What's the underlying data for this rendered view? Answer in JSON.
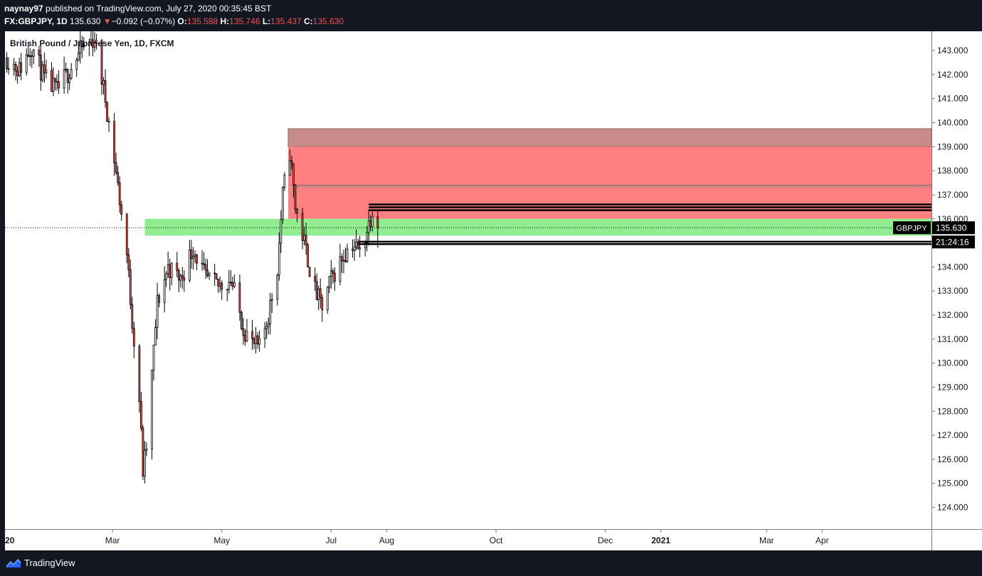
{
  "header": {
    "publisher": "naynay97",
    "published_text": "published on TradingView.com, July 27, 2020 00:35:45 BST",
    "symbol_tf": "FX:GBPJPY, 1D",
    "last": "135.630",
    "change_arrow": "▼",
    "change": "−0.092 (−0.07%)",
    "o_label": "O:",
    "o_value": "135.588",
    "h_label": "H:",
    "h_value": "135.746",
    "l_label": "L:",
    "l_value": "135.437",
    "c_label": "C:",
    "c_value": "135.630"
  },
  "colors": {
    "up": "#ffffff",
    "down": "#ef5350",
    "supply_zone": "#ff8080",
    "supply_zone_top": "#c98a8a",
    "demand_zone": "#90ee90",
    "pane_bg": "#ffffff",
    "scale_bg": "#ffffff",
    "app_bg": "#131722"
  },
  "chart_data": {
    "type": "candlestick",
    "title": "British Pound / Japanese Yen, 1D, FXCM",
    "symbol_label": "GBPJPY",
    "last_price_label": "135.630",
    "countdown_label": "21:24:16",
    "ylim": [
      123.1,
      143.8
    ],
    "y_ticks": [
      "143.000",
      "142.000",
      "141.000",
      "140.000",
      "139.000",
      "138.000",
      "137.000",
      "136.000",
      "135.000",
      "134.000",
      "133.000",
      "132.000",
      "131.000",
      "130.000",
      "129.000",
      "128.000",
      "127.000",
      "126.000",
      "125.000",
      "124.000"
    ],
    "x_ticks": [
      {
        "label": "20",
        "date": "2020-01-01"
      },
      {
        "label": "Mar",
        "date": "2020-03-01"
      },
      {
        "label": "May",
        "date": "2020-05-01"
      },
      {
        "label": "Jul",
        "date": "2020-07-01"
      },
      {
        "label": "Aug",
        "date": "2020-08-01"
      },
      {
        "label": "Oct",
        "date": "2020-10-01"
      },
      {
        "label": "Dec",
        "date": "2020-12-01"
      },
      {
        "label": "2021",
        "date": "2021-01-01"
      },
      {
        "label": "Mar",
        "date": "2021-03-01"
      },
      {
        "label": "Apr",
        "date": "2021-04-01"
      }
    ],
    "x_range": [
      "2020-01-01",
      "2021-06-01"
    ],
    "last_price": 135.63,
    "candles_anchor_series": [
      [
        "2020-01-02",
        142.7
      ],
      [
        "2020-01-09",
        142.2
      ],
      [
        "2020-01-16",
        143.2
      ],
      [
        "2020-01-23",
        141.8
      ],
      [
        "2020-01-30",
        141.3
      ],
      [
        "2020-02-06",
        142.2
      ],
      [
        "2020-02-13",
        143.1
      ],
      [
        "2020-02-20",
        143.5
      ],
      [
        "2020-02-26",
        141.0
      ],
      [
        "2020-03-02",
        138.5
      ],
      [
        "2020-03-05",
        136.8
      ],
      [
        "2020-03-09",
        134.5
      ],
      [
        "2020-03-12",
        131.8
      ],
      [
        "2020-03-16",
        128.5
      ],
      [
        "2020-03-18",
        125.5
      ],
      [
        "2020-03-20",
        126.5
      ],
      [
        "2020-03-23",
        129.5
      ],
      [
        "2020-03-26",
        132.5
      ],
      [
        "2020-04-01",
        134.0
      ],
      [
        "2020-04-08",
        133.5
      ],
      [
        "2020-04-15",
        134.8
      ],
      [
        "2020-04-22",
        133.5
      ],
      [
        "2020-04-29",
        133.2
      ],
      [
        "2020-05-06",
        133.5
      ],
      [
        "2020-05-13",
        131.5
      ],
      [
        "2020-05-18",
        130.8
      ],
      [
        "2020-05-22",
        130.6
      ],
      [
        "2020-05-27",
        132.0
      ],
      [
        "2020-06-01",
        134.0
      ],
      [
        "2020-06-04",
        137.0
      ],
      [
        "2020-06-08",
        138.8
      ],
      [
        "2020-06-11",
        136.5
      ],
      [
        "2020-06-16",
        135.0
      ],
      [
        "2020-06-22",
        133.0
      ],
      [
        "2020-06-26",
        132.3
      ],
      [
        "2020-07-01",
        133.5
      ],
      [
        "2020-07-08",
        134.5
      ],
      [
        "2020-07-13",
        135.0
      ],
      [
        "2020-07-17",
        134.6
      ],
      [
        "2020-07-22",
        135.8
      ],
      [
        "2020-07-24",
        136.4
      ],
      [
        "2020-07-27",
        135.63
      ]
    ],
    "zones": [
      {
        "name": "supply-zone-top",
        "from_date": "2020-06-07",
        "to_date": "2021-06-01",
        "low": 139.0,
        "high": 139.75
      },
      {
        "name": "supply-zone-main",
        "from_date": "2020-06-07",
        "to_date": "2021-06-01",
        "low": 137.3,
        "high": 139.0
      },
      {
        "name": "supply-zone-inner-band",
        "from_date": "2020-06-12",
        "to_date": "2021-06-01",
        "low": 137.2,
        "high": 137.4
      },
      {
        "name": "supply-zone-lower",
        "from_date": "2020-06-07",
        "to_date": "2021-06-01",
        "low": 136.0,
        "high": 137.3
      },
      {
        "name": "demand-zone",
        "from_date": "2020-03-19",
        "to_date": "2021-06-01",
        "low": 135.3,
        "high": 136.0
      }
    ],
    "lines": [
      {
        "name": "resistance-line-1",
        "from_date": "2020-07-22",
        "price": 136.6
      },
      {
        "name": "resistance-line-2",
        "from_date": "2020-07-22",
        "price": 136.48
      },
      {
        "name": "resistance-line-3",
        "from_date": "2020-07-22",
        "price": 136.36
      },
      {
        "name": "support-line-1",
        "from_date": "2020-07-16",
        "price": 135.05
      },
      {
        "name": "support-line-2",
        "from_date": "2020-07-16",
        "price": 134.95
      }
    ]
  },
  "footer": {
    "brand": "TradingView"
  }
}
